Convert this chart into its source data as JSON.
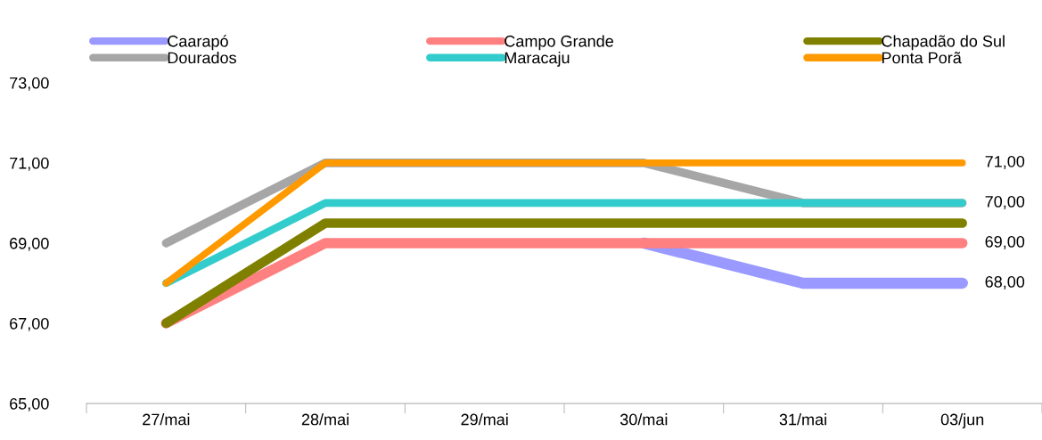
{
  "chart_data": {
    "type": "line",
    "categories": [
      "27/mai",
      "28/mai",
      "29/mai",
      "30/mai",
      "31/mai",
      "03/jun"
    ],
    "series": [
      {
        "name": "Caarapó",
        "color": "#9999ff",
        "values": [
          null,
          null,
          null,
          69,
          68,
          68
        ],
        "value_labels": [
          null,
          null,
          null,
          null,
          null,
          "68,00"
        ]
      },
      {
        "name": "Campo Grande",
        "color": "#ff8080",
        "values": [
          67,
          69,
          69,
          69,
          69,
          69
        ],
        "value_labels": [
          null,
          null,
          null,
          null,
          null,
          "69,00"
        ]
      },
      {
        "name": "Chapadão do Sul",
        "color": "#808000",
        "values": [
          67,
          69.5,
          69.5,
          69.5,
          69.5,
          69.5
        ]
      },
      {
        "name": "Dourados",
        "color": "#a6a6a6",
        "values": [
          69,
          71,
          71,
          71,
          70,
          70
        ]
      },
      {
        "name": "Maracaju",
        "color": "#33cccc",
        "values": [
          68,
          70,
          70,
          70,
          70,
          70
        ],
        "value_labels": [
          null,
          null,
          null,
          null,
          null,
          "70,00"
        ]
      },
      {
        "name": "Ponta Porã",
        "color": "#ff9900",
        "values": [
          68,
          71,
          71,
          71,
          71,
          71
        ],
        "value_labels": [
          null,
          null,
          null,
          null,
          null,
          "71,00"
        ]
      }
    ],
    "ylim": [
      65,
      73
    ],
    "yticks": [
      {
        "value": 65,
        "label": "65,00"
      },
      {
        "value": 67,
        "label": "67,00"
      },
      {
        "value": 69,
        "label": "69,00"
      },
      {
        "value": 71,
        "label": "71,00"
      },
      {
        "value": 73,
        "label": "73,00"
      }
    ],
    "grid": false,
    "legend": "top",
    "marker": "none",
    "line_style": "solid"
  }
}
